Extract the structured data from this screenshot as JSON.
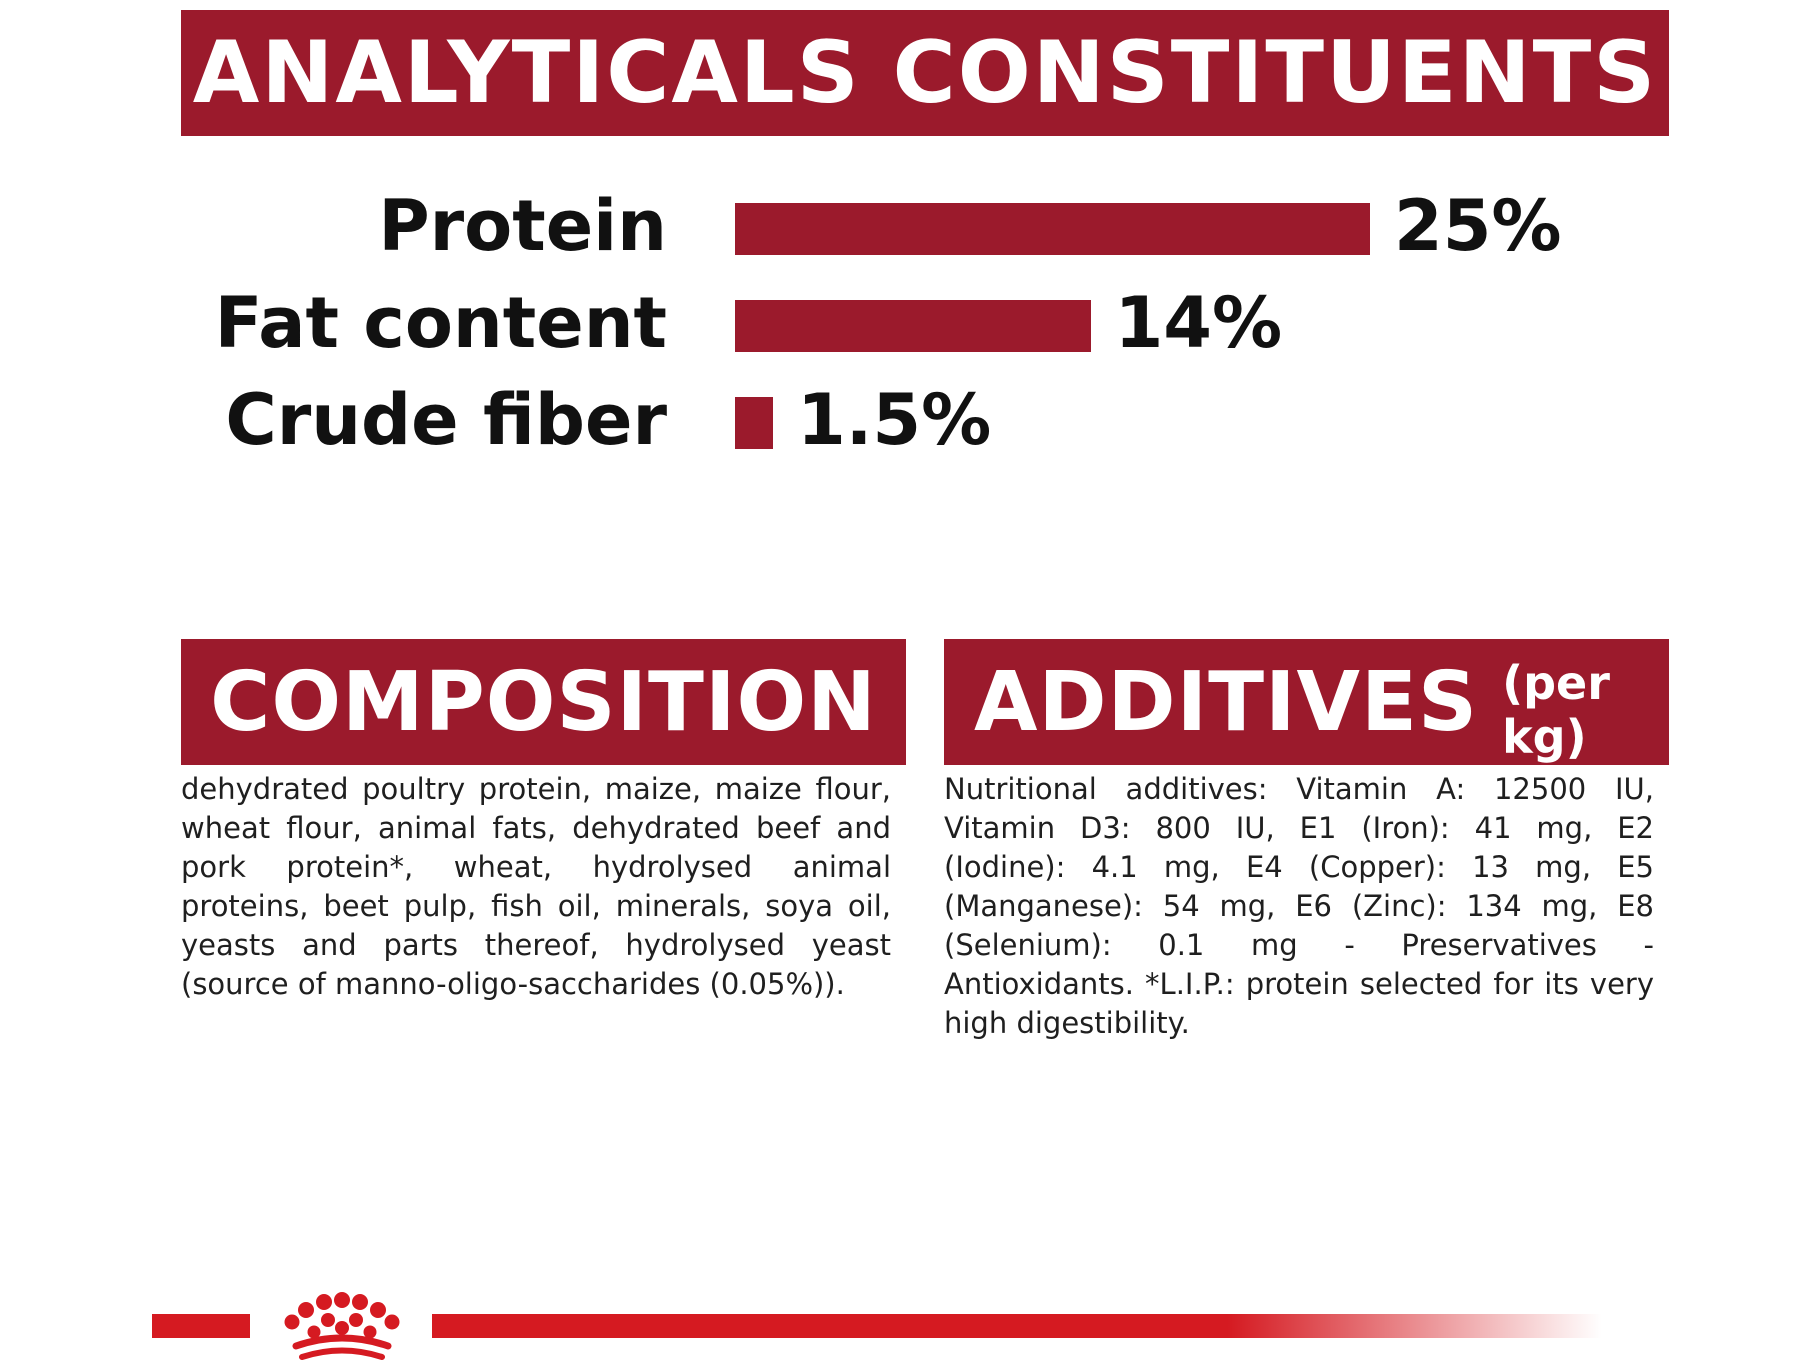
{
  "colors": {
    "banner": "#9b1a2c",
    "bar": "#9b1a2c",
    "brand_red": "#d51a21",
    "text": "#1f1f1f"
  },
  "analytical": {
    "title": "ANALYTICALS CONSTITUENTS",
    "items": [
      {
        "label": "Protein",
        "percent": 25,
        "value_text": "25%"
      },
      {
        "label": "Fat content",
        "percent": 14,
        "value_text": "14%"
      },
      {
        "label": "Crude fiber",
        "percent": 1.5,
        "value_text": "1.5%"
      }
    ]
  },
  "composition": {
    "title": "COMPOSITION",
    "text": "dehydrated poultry protein, maize, maize flour, wheat flour, animal fats, dehydrated beef and pork protein*, wheat, hydrolysed animal proteins, beet pulp, fish oil, minerals, soya oil, yeasts and parts thereof, hydrolysed yeast (source of manno-oligo-saccharides (0.05%))."
  },
  "additives": {
    "title": "ADDITIVES",
    "subtitle": "(per kg)",
    "text": "Nutritional additives: Vitamin A: 12500 IU, Vitamin D3: 800 IU, E1 (Iron): 41 mg, E2 (Iodine): 4.1 mg, E4 (Copper): 13 mg, E5 (Manganese): 54 mg, E6 (Zinc): 134 mg, E8 (Selenium): 0.1 mg - Preservatives - Antioxidants. *L.I.P.: protein selected for its very high digestibility."
  },
  "footer": {
    "logo_icon": "crown-icon"
  }
}
